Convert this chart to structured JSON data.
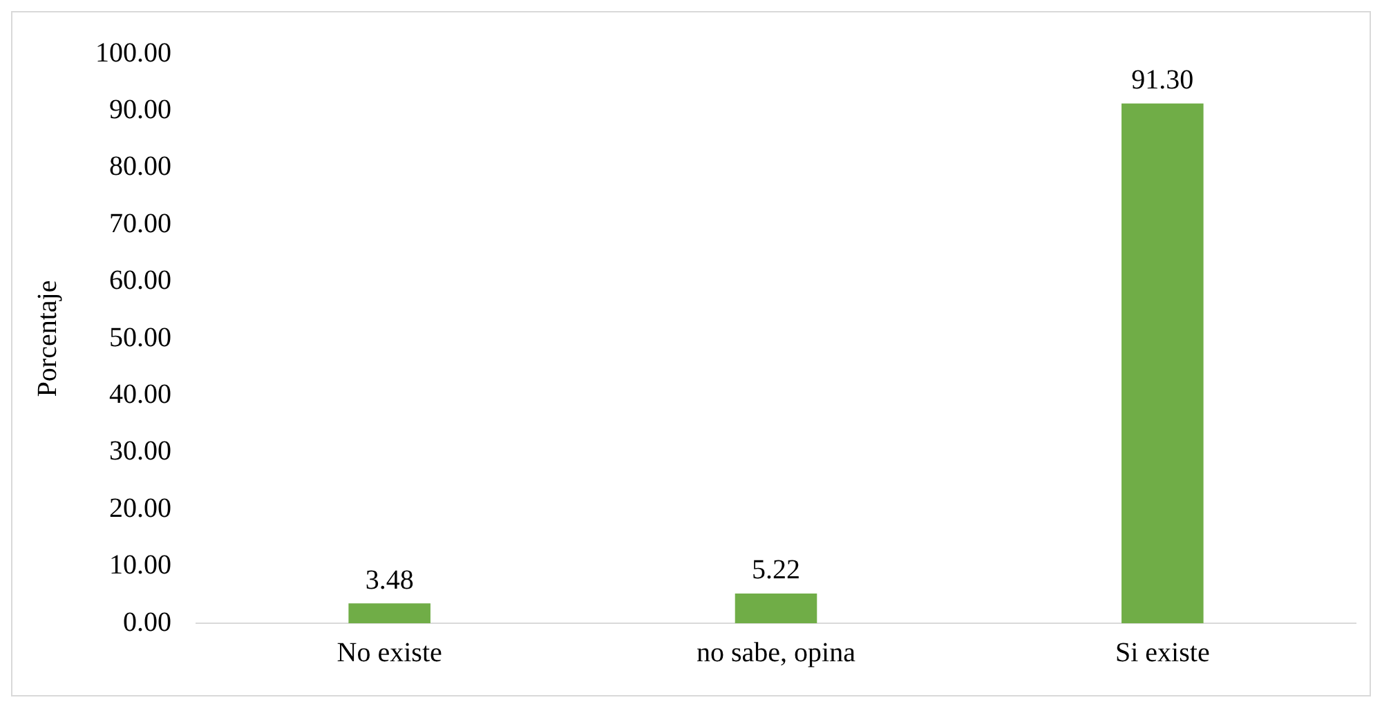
{
  "chart_data": {
    "type": "bar",
    "ylabel": "Porcentaje",
    "categories": [
      "No existe",
      "no sabe, opina",
      "Si existe"
    ],
    "values": [
      3.48,
      5.22,
      91.3
    ],
    "value_labels": [
      "3.48",
      "5.22",
      "91.30"
    ],
    "color": "#70ad47",
    "ylim": [
      0,
      100
    ],
    "yticks": [
      {
        "value": 0,
        "label": "0.00"
      },
      {
        "value": 10,
        "label": "10.00"
      },
      {
        "value": 20,
        "label": "20.00"
      },
      {
        "value": 30,
        "label": "30.00"
      },
      {
        "value": 40,
        "label": "40.00"
      },
      {
        "value": 50,
        "label": "50.00"
      },
      {
        "value": 60,
        "label": "60.00"
      },
      {
        "value": 70,
        "label": "70.00"
      },
      {
        "value": 80,
        "label": "80.00"
      },
      {
        "value": 90,
        "label": "90.00"
      },
      {
        "value": 100,
        "label": "100.00"
      }
    ],
    "grid": false,
    "legend": false
  }
}
